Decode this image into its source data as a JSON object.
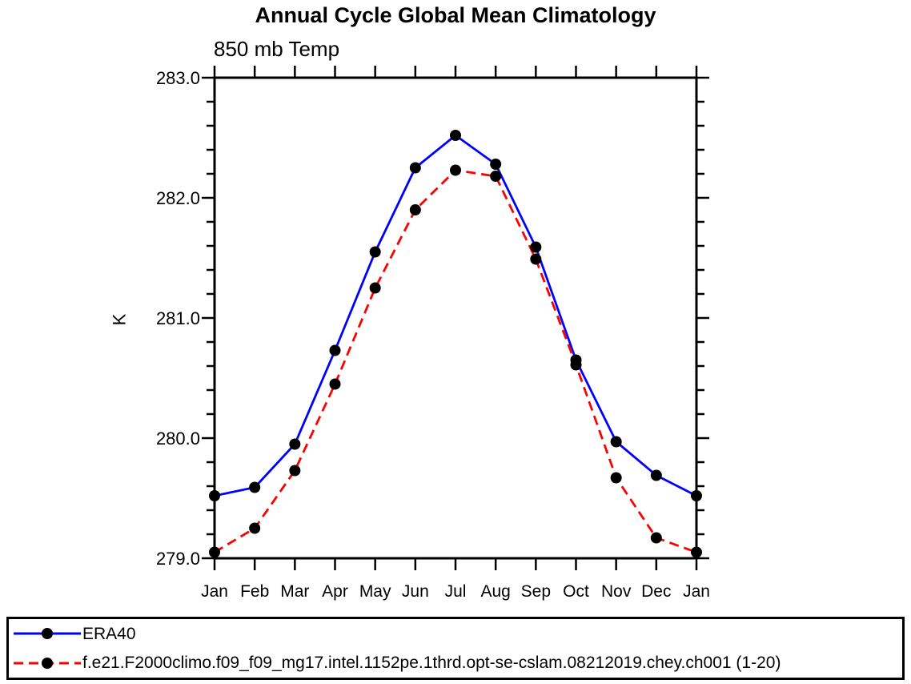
{
  "title": "Annual Cycle Global Mean Climatology",
  "subtitle": "850 mb Temp",
  "chart_data": {
    "type": "line",
    "categories": [
      "Jan",
      "Feb",
      "Mar",
      "Apr",
      "May",
      "Jun",
      "Jul",
      "Aug",
      "Sep",
      "Oct",
      "Nov",
      "Dec",
      "Jan"
    ],
    "xlabel": "",
    "ylabel": "K",
    "ylim": [
      279.0,
      283.0
    ],
    "ytick_major": 1.0,
    "ytick_minor": 0.2,
    "ytick_labels": [
      "283.0",
      "282.0",
      "281.0",
      "280.0",
      "279.0"
    ],
    "grid": false,
    "legend_position": "bottom box, full width, left-aligned entries",
    "frame": "closed box with outward ticks on all four sides",
    "marker": {
      "shape": "filled-circle",
      "color": "#000000",
      "radius": 7
    },
    "series": [
      {
        "name": "ERA40",
        "color": "#0000ff",
        "style": "solid",
        "values": [
          279.52,
          279.59,
          279.95,
          280.73,
          281.55,
          282.25,
          282.52,
          282.28,
          281.59,
          280.65,
          279.97,
          279.69,
          279.52
        ]
      },
      {
        "name": "f.e21.F2000climo.f09_f09_mg17.intel.1152pe.1thrd.opt-se-cslam.08212019.chey.ch001 (1-20)",
        "color": "#ff0000",
        "style": "dashed",
        "values": [
          279.05,
          279.25,
          279.73,
          280.45,
          281.25,
          281.9,
          282.23,
          282.18,
          281.49,
          280.61,
          279.67,
          279.17,
          279.05
        ]
      }
    ],
    "colors": {
      "axis": "#000000",
      "text": "#000000",
      "background": "#ffffff"
    }
  }
}
